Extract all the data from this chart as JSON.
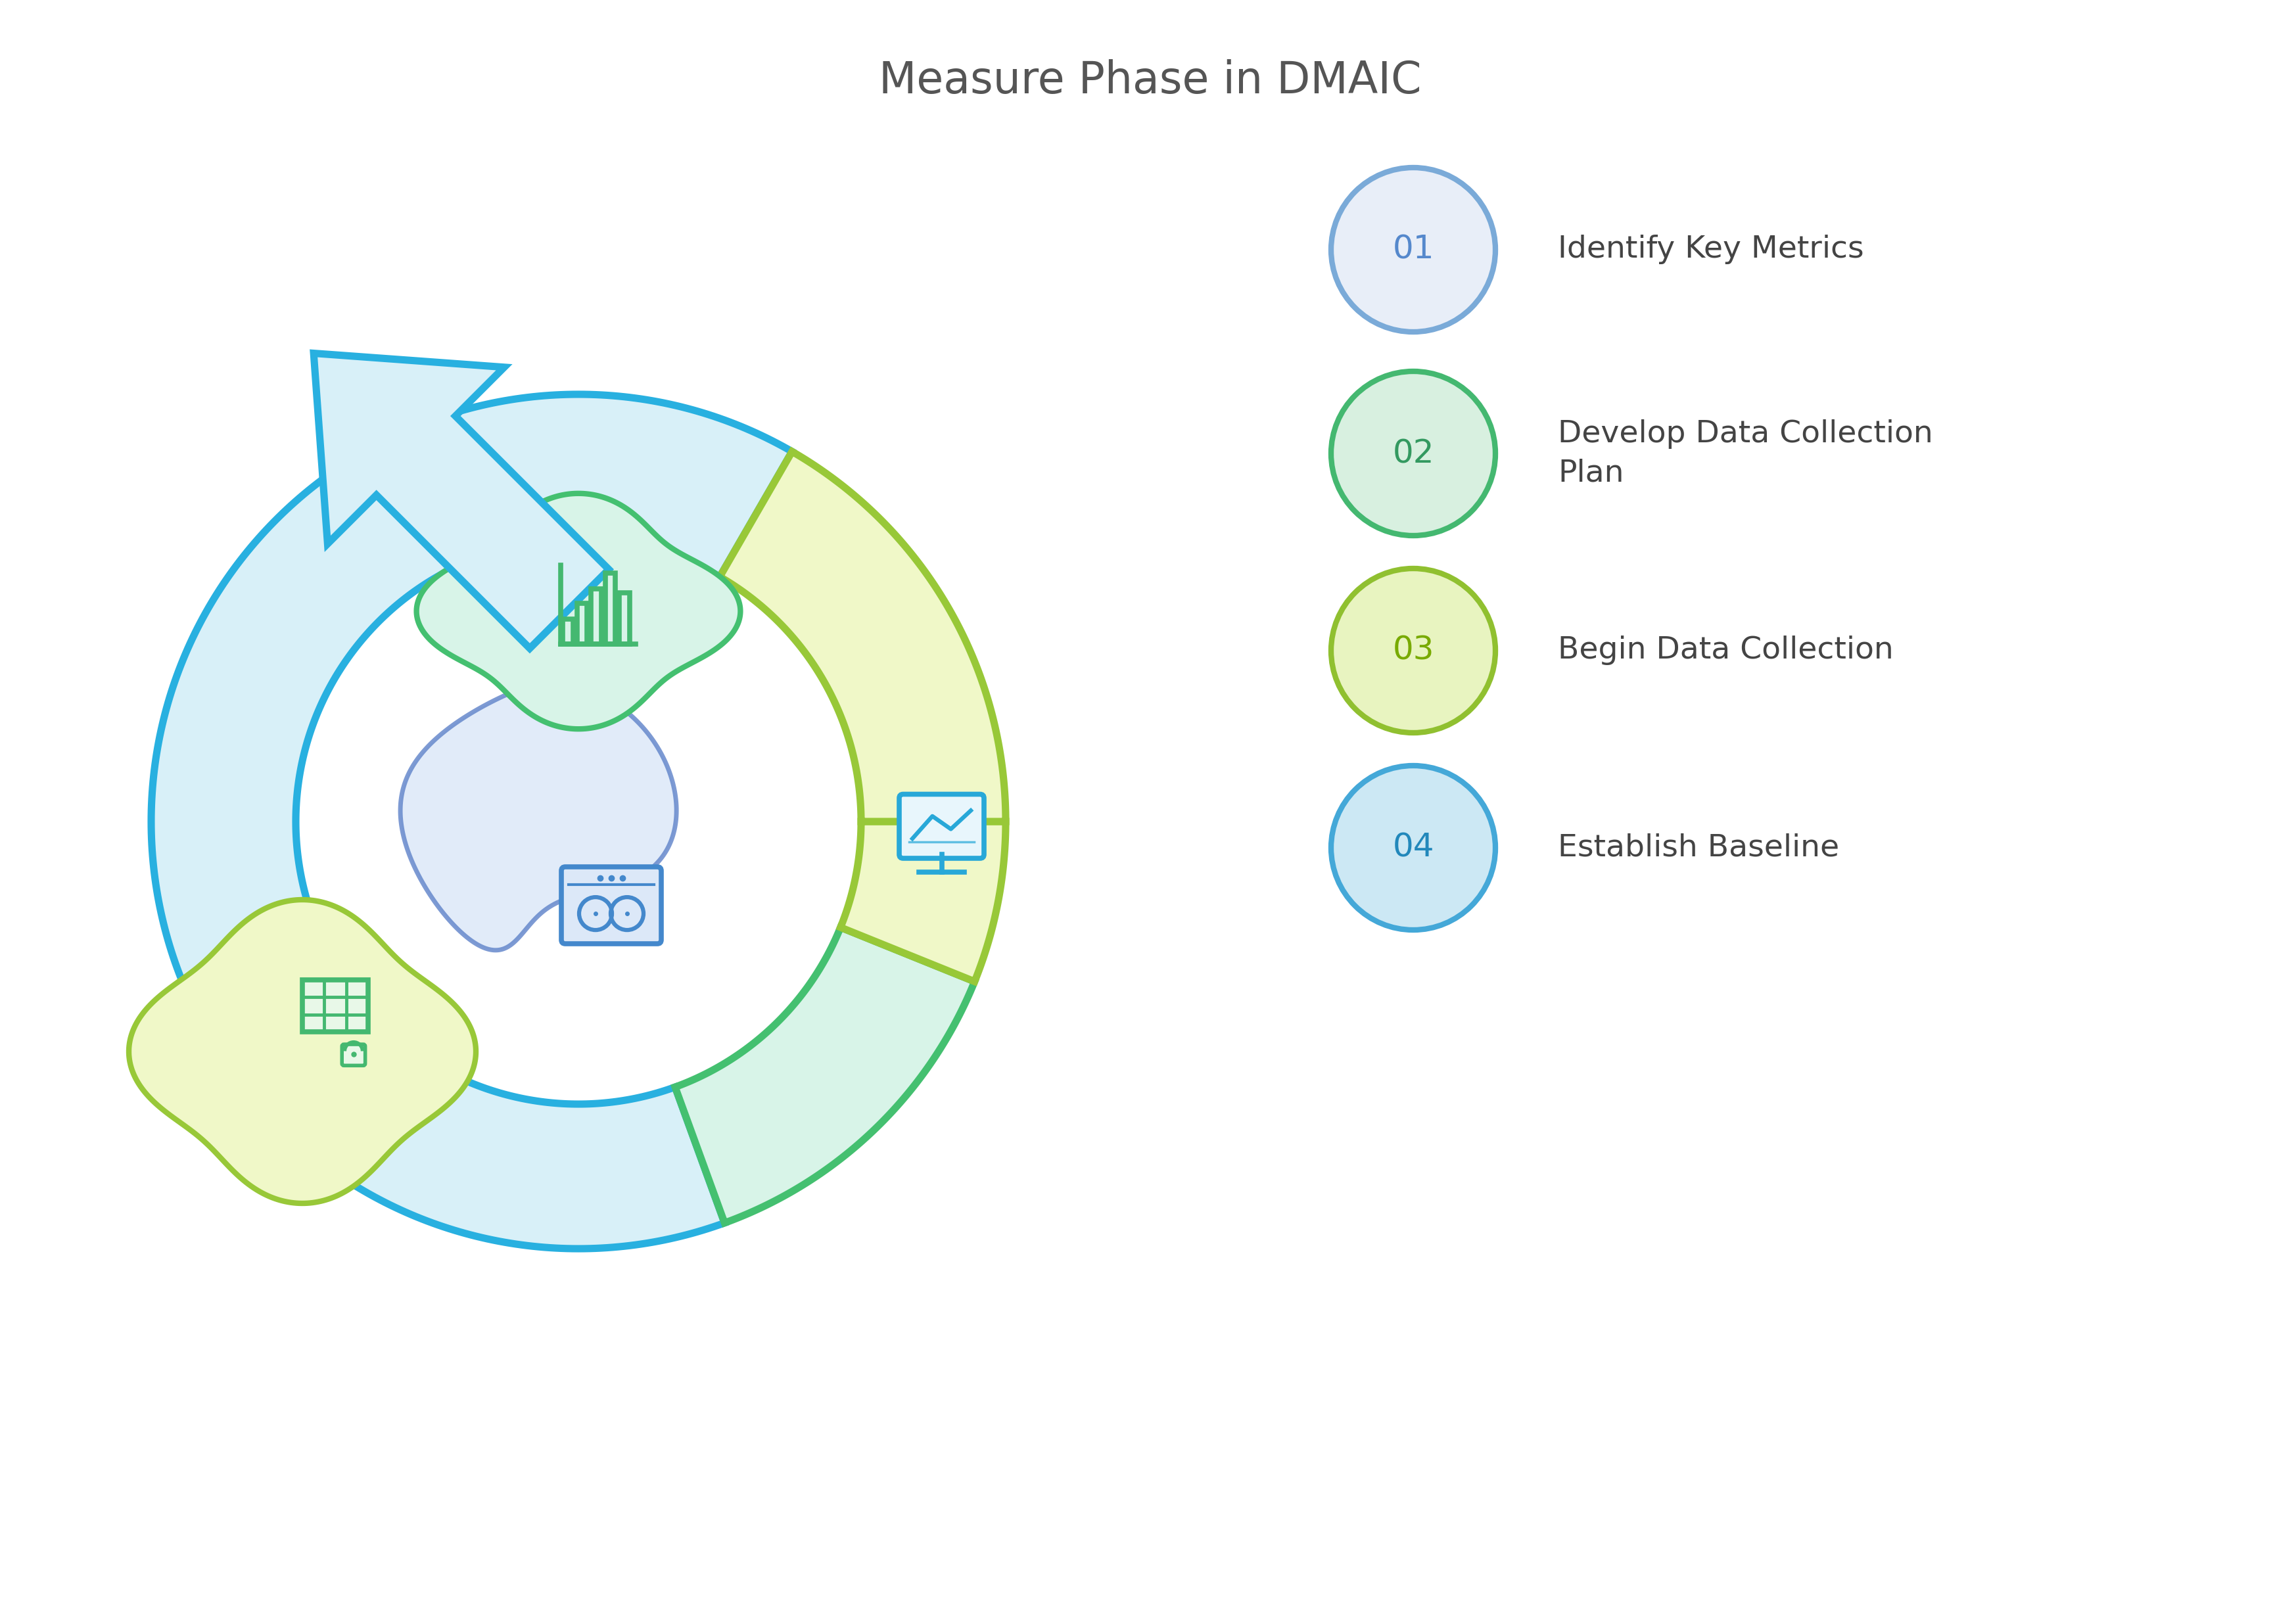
{
  "title": "Measure Phase in DMAIC",
  "title_fontsize": 48,
  "title_color": "#555555",
  "background_color": "#ffffff",
  "items": [
    {
      "num": "01",
      "text": "Identify Key Metrics",
      "circle_fill": "#e8eef8",
      "circle_edge": "#7aaad8",
      "num_color": "#5588cc"
    },
    {
      "num": "02",
      "text": "Develop Data Collection\nPlan",
      "circle_fill": "#d8f0e0",
      "circle_edge": "#44b870",
      "num_color": "#339960"
    },
    {
      "num": "03",
      "text": "Begin Data Collection",
      "circle_fill": "#e8f4c0",
      "circle_edge": "#90c030",
      "num_color": "#78aa00"
    },
    {
      "num": "04",
      "text": "Establish Baseline",
      "circle_fill": "#cce8f4",
      "circle_edge": "#44a8d8",
      "num_color": "#2288bb"
    }
  ],
  "blue_fill": "#d8f0f8",
  "blue_edge": "#28b0e0",
  "green_fill": "#d8f4e8",
  "green_edge": "#44c070",
  "yellow_fill": "#f0f8c8",
  "yellow_edge": "#98c838",
  "icon_green": "#44b870",
  "icon_blue": "#4488cc",
  "icon_cyan": "#28a8d8",
  "blob_green_fill": "#d8f4e8",
  "blob_green_edge": "#44c070",
  "blob_yellow_fill": "#f0f8c8",
  "blob_yellow_edge": "#98c838",
  "blob_blue_fill": "#dce8f8",
  "blob_blue_edge": "#6688cc"
}
